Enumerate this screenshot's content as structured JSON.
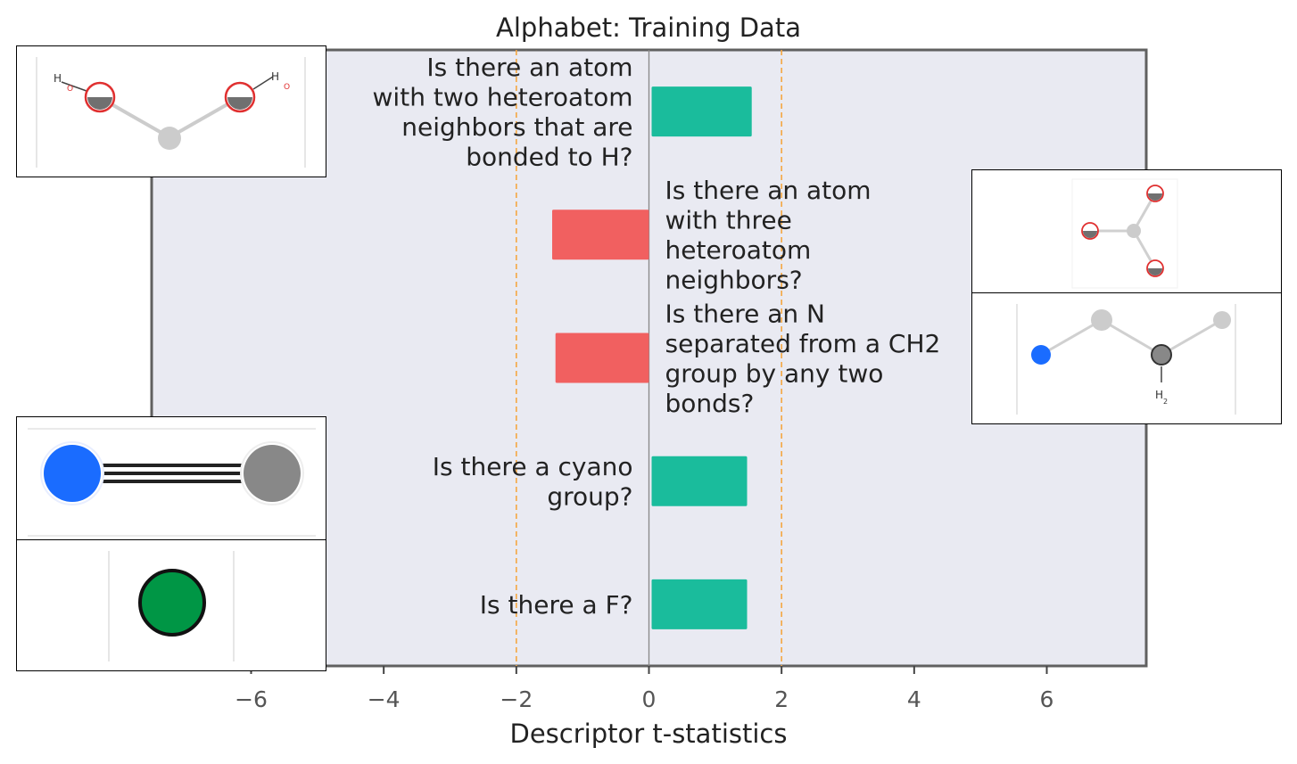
{
  "chart_data": {
    "type": "bar",
    "orientation": "horizontal",
    "title": "Alphabet: Training Data",
    "xlabel": "Descriptor t-statistics",
    "xlim": [
      -7.5,
      7.5
    ],
    "xticks": [
      -6,
      -4,
      -2,
      0,
      2,
      4,
      6
    ],
    "xtick_labels": [
      "−6",
      "−4",
      "−2",
      "0",
      "2",
      "4",
      "6"
    ],
    "significance_lines": [
      -2,
      2
    ],
    "grid": false,
    "categories": [
      "Is there an atom with two heteroatom neighbors that are bonded to H?",
      "Is there an atom with three heteroatom neighbors?",
      "Is there an N separated from a CH2 group by any two bonds?",
      "Is there a cyano group?",
      "Is there a F?"
    ],
    "category_lines": [
      [
        "Is there an atom",
        "with two heteroatom",
        "neighbors that are",
        "bonded to H?"
      ],
      [
        "Is there an atom",
        "with three",
        "heteroatom",
        "neighbors?"
      ],
      [
        "Is there an N",
        "separated from a CH2",
        "group by any two",
        "bonds?"
      ],
      [
        "Is there a cyano",
        "group?"
      ],
      [
        "Is there a F?"
      ]
    ],
    "values": [
      1.55,
      -1.5,
      -1.45,
      1.48,
      1.48
    ],
    "colors": {
      "positive": "#1abc9c",
      "negative": "#f16060",
      "background": "#e9eaf2",
      "frame": "#606060",
      "zero_line": "#888888",
      "significance": "#f5a742",
      "text": "#222222",
      "tick_text": "#555555"
    }
  },
  "insets": {
    "inset_1": {
      "atom_labels": [
        "H",
        "O",
        "H",
        "O"
      ]
    },
    "inset_2": {
      "atom_labels": []
    },
    "inset_3": {
      "atom_labels": [
        "H",
        "2"
      ]
    },
    "inset_4": {
      "atom_labels": []
    },
    "inset_5": {
      "atom_labels": []
    }
  }
}
